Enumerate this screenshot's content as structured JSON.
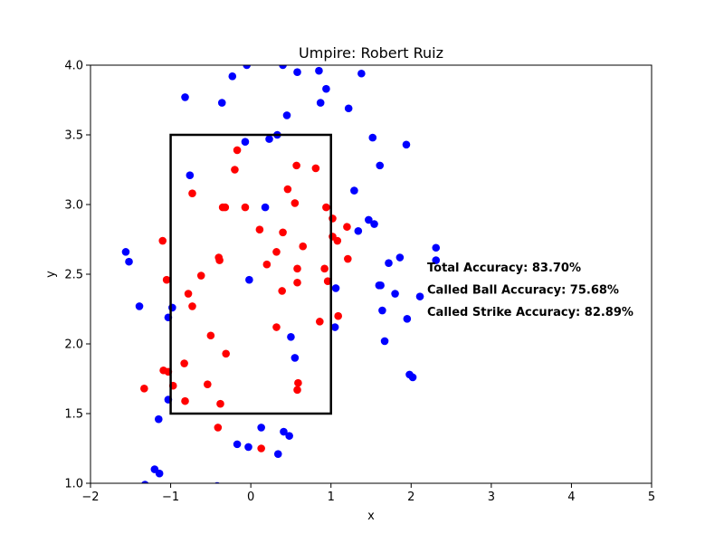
{
  "chart_data": {
    "type": "scatter",
    "title": "Umpire: Robert Ruiz",
    "xlabel": "x",
    "ylabel": "y",
    "xlim": [
      -2,
      5
    ],
    "ylim": [
      1.0,
      4.0
    ],
    "x_ticks": [
      "−2",
      "−1",
      "0",
      "1",
      "2",
      "3",
      "4",
      "5"
    ],
    "y_ticks": [
      "1.0",
      "1.5",
      "2.0",
      "2.5",
      "3.0",
      "3.5",
      "4.0"
    ],
    "grid": false,
    "strike_zone": {
      "x": [
        -1,
        1
      ],
      "y": [
        1.5,
        3.5
      ],
      "color": "#000000"
    },
    "annotations": [
      "Total Accuracy: 83.70%",
      "Called Ball Accuracy: 75.68%",
      "Called Strike Accuracy: 82.89%"
    ],
    "series": [
      {
        "color": "#0000ff",
        "points": [
          [
            -0.05,
            4.0
          ],
          [
            0.4,
            4.0
          ],
          [
            0.85,
            3.96
          ],
          [
            0.58,
            3.95
          ],
          [
            1.38,
            3.94
          ],
          [
            -0.23,
            3.92
          ],
          [
            0.94,
            3.83
          ],
          [
            -0.82,
            3.77
          ],
          [
            -0.36,
            3.73
          ],
          [
            0.87,
            3.73
          ],
          [
            1.22,
            3.69
          ],
          [
            0.45,
            3.64
          ],
          [
            0.33,
            3.5
          ],
          [
            1.52,
            3.48
          ],
          [
            0.23,
            3.47
          ],
          [
            -0.07,
            3.45
          ],
          [
            1.94,
            3.43
          ],
          [
            1.61,
            3.28
          ],
          [
            -0.76,
            3.21
          ],
          [
            1.29,
            3.1
          ],
          [
            0.18,
            2.98
          ],
          [
            1.47,
            2.89
          ],
          [
            1.54,
            2.86
          ],
          [
            1.34,
            2.81
          ],
          [
            2.31,
            2.69
          ],
          [
            -1.56,
            2.66
          ],
          [
            1.86,
            2.62
          ],
          [
            -1.52,
            2.59
          ],
          [
            1.72,
            2.58
          ],
          [
            2.31,
            2.6
          ],
          [
            -0.02,
            2.46
          ],
          [
            1.6,
            2.42
          ],
          [
            1.62,
            2.42
          ],
          [
            1.06,
            2.4
          ],
          [
            1.8,
            2.36
          ],
          [
            2.11,
            2.34
          ],
          [
            -1.39,
            2.27
          ],
          [
            -0.98,
            2.26
          ],
          [
            1.64,
            2.24
          ],
          [
            -1.03,
            2.19
          ],
          [
            1.95,
            2.18
          ],
          [
            1.05,
            2.12
          ],
          [
            0.5,
            2.05
          ],
          [
            1.67,
            2.02
          ],
          [
            0.55,
            1.9
          ],
          [
            1.98,
            1.78
          ],
          [
            2.02,
            1.76
          ],
          [
            -1.03,
            1.6
          ],
          [
            -1.15,
            1.46
          ],
          [
            0.13,
            1.4
          ],
          [
            0.41,
            1.37
          ],
          [
            0.48,
            1.34
          ],
          [
            -0.17,
            1.28
          ],
          [
            -0.03,
            1.26
          ],
          [
            0.34,
            1.21
          ],
          [
            -1.2,
            1.1
          ],
          [
            -1.14,
            1.07
          ],
          [
            -1.32,
            0.99
          ],
          [
            -0.42,
            0.98
          ]
        ]
      },
      {
        "color": "#ff0000",
        "points": [
          [
            -0.17,
            3.39
          ],
          [
            0.57,
            3.28
          ],
          [
            0.81,
            3.26
          ],
          [
            -0.2,
            3.25
          ],
          [
            0.46,
            3.11
          ],
          [
            -0.73,
            3.08
          ],
          [
            0.55,
            3.01
          ],
          [
            0.94,
            2.98
          ],
          [
            -0.07,
            2.98
          ],
          [
            -0.35,
            2.98
          ],
          [
            -0.32,
            2.98
          ],
          [
            1.02,
            2.9
          ],
          [
            1.2,
            2.84
          ],
          [
            0.11,
            2.82
          ],
          [
            0.4,
            2.8
          ],
          [
            1.02,
            2.77
          ],
          [
            1.08,
            2.74
          ],
          [
            -1.1,
            2.74
          ],
          [
            0.65,
            2.7
          ],
          [
            0.32,
            2.66
          ],
          [
            -0.4,
            2.62
          ],
          [
            -0.39,
            2.6
          ],
          [
            1.21,
            2.61
          ],
          [
            0.2,
            2.57
          ],
          [
            0.58,
            2.54
          ],
          [
            0.92,
            2.54
          ],
          [
            -0.62,
            2.49
          ],
          [
            -1.05,
            2.46
          ],
          [
            0.96,
            2.45
          ],
          [
            0.58,
            2.44
          ],
          [
            0.39,
            2.38
          ],
          [
            -0.78,
            2.36
          ],
          [
            -0.73,
            2.27
          ],
          [
            1.09,
            2.2
          ],
          [
            0.86,
            2.16
          ],
          [
            0.32,
            2.12
          ],
          [
            -0.5,
            2.06
          ],
          [
            -0.31,
            1.93
          ],
          [
            -0.83,
            1.86
          ],
          [
            -1.09,
            1.81
          ],
          [
            -1.03,
            1.8
          ],
          [
            -0.97,
            1.7
          ],
          [
            -0.54,
            1.71
          ],
          [
            0.59,
            1.72
          ],
          [
            -1.33,
            1.68
          ],
          [
            0.58,
            1.67
          ],
          [
            -0.82,
            1.59
          ],
          [
            -0.38,
            1.57
          ],
          [
            -0.41,
            1.4
          ],
          [
            0.13,
            1.25
          ]
        ]
      }
    ]
  }
}
